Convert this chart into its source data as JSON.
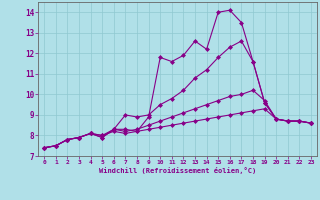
{
  "background_color": "#b0e0e8",
  "grid_color": "#90c8d0",
  "line_color": "#880088",
  "marker": "D",
  "marker_size": 2,
  "linewidth": 0.8,
  "xlabel": "Windchill (Refroidissement éolien,°C)",
  "xlim": [
    -0.5,
    23.5
  ],
  "ylim": [
    7.0,
    14.5
  ],
  "yticks": [
    7,
    8,
    9,
    10,
    11,
    12,
    13,
    14
  ],
  "xticks": [
    0,
    1,
    2,
    3,
    4,
    5,
    6,
    7,
    8,
    9,
    10,
    11,
    12,
    13,
    14,
    15,
    16,
    17,
    18,
    19,
    20,
    21,
    22,
    23
  ],
  "series": [
    [
      7.4,
      7.5,
      7.8,
      7.9,
      8.1,
      7.9,
      8.3,
      8.3,
      8.2,
      8.9,
      11.8,
      11.6,
      11.9,
      12.6,
      12.2,
      14.0,
      14.1,
      13.5,
      11.6,
      9.6,
      8.8,
      8.7,
      8.7,
      8.6
    ],
    [
      7.4,
      7.5,
      7.8,
      7.9,
      8.1,
      7.9,
      8.3,
      9.0,
      8.9,
      9.0,
      9.5,
      9.8,
      10.2,
      10.8,
      11.2,
      11.8,
      12.3,
      12.6,
      11.6,
      9.6,
      8.8,
      8.7,
      8.7,
      8.6
    ],
    [
      7.4,
      7.5,
      7.8,
      7.9,
      8.1,
      8.0,
      8.3,
      8.2,
      8.3,
      8.5,
      8.7,
      8.9,
      9.1,
      9.3,
      9.5,
      9.7,
      9.9,
      10.0,
      10.2,
      9.7,
      8.8,
      8.7,
      8.7,
      8.6
    ],
    [
      7.4,
      7.5,
      7.8,
      7.9,
      8.1,
      8.0,
      8.2,
      8.1,
      8.2,
      8.3,
      8.4,
      8.5,
      8.6,
      8.7,
      8.8,
      8.9,
      9.0,
      9.1,
      9.2,
      9.3,
      8.8,
      8.7,
      8.7,
      8.6
    ]
  ]
}
